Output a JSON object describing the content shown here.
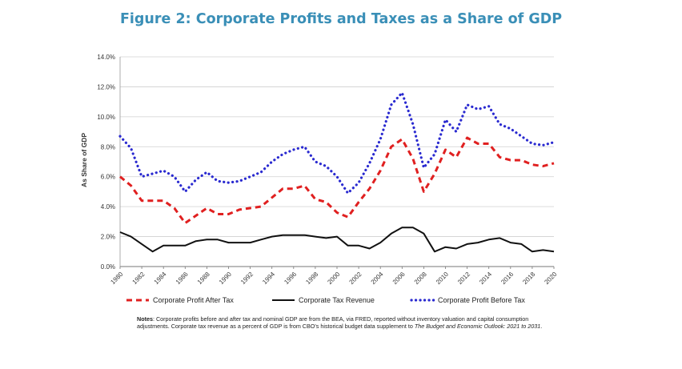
{
  "title": "Figure 2: Corporate Profits and Taxes as a Share of GDP",
  "chart_data": {
    "type": "line",
    "ylabel": "As Share of GDP",
    "xlabel": "",
    "ylim": [
      0,
      14
    ],
    "yticks": [
      "0.0%",
      "2.0%",
      "4.0%",
      "6.0%",
      "8.0%",
      "10.0%",
      "12.0%",
      "14.0%"
    ],
    "xlim": [
      1980,
      2020
    ],
    "xticks": [
      "1980",
      "1982",
      "1984",
      "1986",
      "1988",
      "1990",
      "1992",
      "1994",
      "1996",
      "1998",
      "2000",
      "2002",
      "2004",
      "2006",
      "2008",
      "2010",
      "2012",
      "2014",
      "2016",
      "2018",
      "2020"
    ],
    "grid": true,
    "legend_position": "bottom",
    "x": [
      1980,
      1981,
      1982,
      1983,
      1984,
      1985,
      1986,
      1987,
      1988,
      1989,
      1990,
      1991,
      1992,
      1993,
      1994,
      1995,
      1996,
      1997,
      1998,
      1999,
      2000,
      2001,
      2002,
      2003,
      2004,
      2005,
      2006,
      2007,
      2008,
      2009,
      2010,
      2011,
      2012,
      2013,
      2014,
      2015,
      2016,
      2017,
      2018,
      2019,
      2020
    ],
    "series": [
      {
        "name": "Corporate Profit After Tax",
        "style": "dashed",
        "color": "#e02020",
        "values": [
          6.0,
          5.4,
          4.4,
          4.4,
          4.4,
          3.9,
          2.9,
          3.4,
          3.9,
          3.5,
          3.5,
          3.8,
          3.9,
          4.0,
          4.6,
          5.2,
          5.2,
          5.4,
          4.5,
          4.3,
          3.6,
          3.3,
          4.3,
          5.2,
          6.4,
          8.0,
          8.5,
          7.2,
          5.0,
          6.2,
          7.8,
          7.3,
          8.6,
          8.2,
          8.2,
          7.3,
          7.1,
          7.1,
          6.8,
          6.7,
          6.9
        ]
      },
      {
        "name": "Corporate Tax Revenue",
        "style": "solid",
        "color": "#111111",
        "values": [
          2.3,
          2.0,
          1.5,
          1.0,
          1.4,
          1.4,
          1.4,
          1.7,
          1.8,
          1.8,
          1.6,
          1.6,
          1.6,
          1.8,
          2.0,
          2.1,
          2.1,
          2.1,
          2.0,
          1.9,
          2.0,
          1.4,
          1.4,
          1.2,
          1.6,
          2.2,
          2.6,
          2.6,
          2.2,
          1.0,
          1.3,
          1.2,
          1.5,
          1.6,
          1.8,
          1.9,
          1.6,
          1.5,
          1.0,
          1.1,
          1.0
        ]
      },
      {
        "name": "Corporate Profit Before Tax",
        "style": "dotted",
        "color": "#2a2ad0",
        "values": [
          8.7,
          7.9,
          6.0,
          6.2,
          6.4,
          6.0,
          5.0,
          5.8,
          6.3,
          5.7,
          5.6,
          5.7,
          6.0,
          6.3,
          7.0,
          7.5,
          7.8,
          8.0,
          7.0,
          6.7,
          6.0,
          4.9,
          5.6,
          6.9,
          8.5,
          10.8,
          11.6,
          9.5,
          6.6,
          7.5,
          9.8,
          9.0,
          10.8,
          10.5,
          10.7,
          9.5,
          9.2,
          8.7,
          8.2,
          8.1,
          8.3
        ]
      }
    ]
  },
  "notes": {
    "label": "Notes",
    "text1": ": Corporate profits before and after tax and nominal GDP are from the BEA, via FRED, reported without inventory valuation and capital consumption adjustments. Corporate tax revenue as a percent of GDP is from CBO's historical budget data supplement to ",
    "book": "The Budget and Economic Outlook: 2021 to 2031",
    "text2": "."
  }
}
